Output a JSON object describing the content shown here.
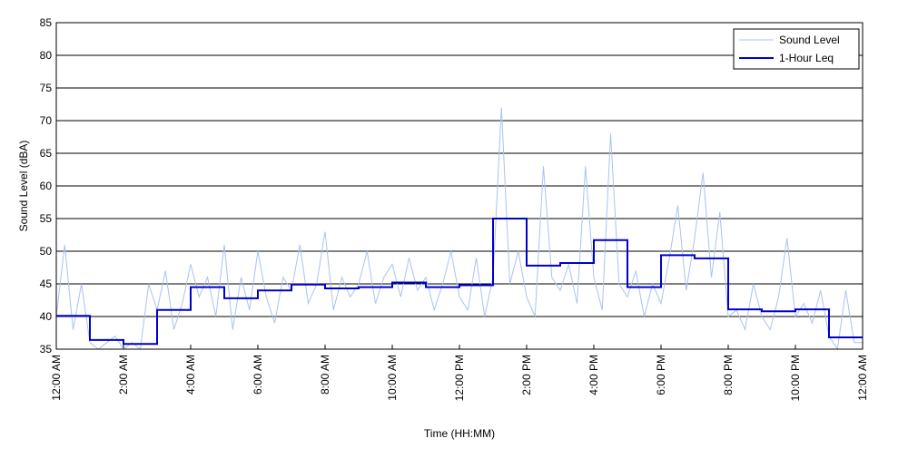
{
  "chart_data": {
    "type": "line",
    "xlabel": "Time (HH:MM)",
    "ylabel": "Sound Level (dBA)",
    "xlim": [
      0,
      24
    ],
    "ylim": [
      35,
      85
    ],
    "xticks": [
      {
        "value": 0,
        "label": "12:00 AM"
      },
      {
        "value": 2,
        "label": "2:00 AM"
      },
      {
        "value": 4,
        "label": "4:00 AM"
      },
      {
        "value": 6,
        "label": "6:00 AM"
      },
      {
        "value": 8,
        "label": "8:00 AM"
      },
      {
        "value": 10,
        "label": "10:00 AM"
      },
      {
        "value": 12,
        "label": "12:00 PM"
      },
      {
        "value": 14,
        "label": "2:00 PM"
      },
      {
        "value": 16,
        "label": "4:00 PM"
      },
      {
        "value": 18,
        "label": "6:00 PM"
      },
      {
        "value": 20,
        "label": "8:00 PM"
      },
      {
        "value": 22,
        "label": "10:00 PM"
      },
      {
        "value": 24,
        "label": "12:00 AM"
      }
    ],
    "yticks": [
      35,
      40,
      45,
      50,
      55,
      60,
      65,
      70,
      75,
      80,
      85
    ],
    "grid": true,
    "legend": "upper right",
    "series": [
      {
        "name": "Sound Level",
        "color": "#a9c3ef",
        "x": [
          0,
          0.25,
          0.5,
          0.75,
          1,
          1.25,
          1.5,
          1.75,
          2,
          2.25,
          2.5,
          2.75,
          3,
          3.25,
          3.5,
          3.75,
          4,
          4.25,
          4.5,
          4.75,
          5,
          5.25,
          5.5,
          5.75,
          6,
          6.25,
          6.5,
          6.75,
          7,
          7.25,
          7.5,
          7.75,
          8,
          8.25,
          8.5,
          8.75,
          9,
          9.25,
          9.5,
          9.75,
          10,
          10.25,
          10.5,
          10.75,
          11,
          11.25,
          11.5,
          11.75,
          12,
          12.25,
          12.5,
          12.75,
          13,
          13.25,
          13.5,
          13.75,
          14,
          14.25,
          14.5,
          14.75,
          15,
          15.25,
          15.5,
          15.75,
          16,
          16.25,
          16.5,
          16.75,
          17,
          17.25,
          17.5,
          17.75,
          18,
          18.25,
          18.5,
          18.75,
          19,
          19.25,
          19.5,
          19.75,
          20,
          20.25,
          20.5,
          20.75,
          21,
          21.25,
          21.5,
          21.75,
          22,
          22.25,
          22.5,
          22.75,
          23,
          23.25,
          23.5,
          23.75,
          24
        ],
        "values": [
          40,
          51,
          38,
          45,
          36,
          35,
          36,
          37,
          35,
          36,
          35,
          45,
          41,
          47,
          38,
          42,
          48,
          43,
          46,
          40,
          51,
          38,
          46,
          41,
          50,
          43,
          39,
          46,
          44,
          51,
          42,
          45,
          53,
          41,
          46,
          43,
          45,
          50,
          42,
          46,
          48,
          43,
          49,
          44,
          46,
          41,
          45,
          50,
          43,
          41,
          49,
          40,
          46,
          72,
          45,
          50,
          43,
          40,
          63,
          46,
          44,
          48,
          42,
          63,
          46,
          41,
          68,
          45,
          43,
          47,
          40,
          45,
          42,
          49,
          57,
          44,
          52,
          62,
          46,
          56,
          40,
          41,
          38,
          45,
          40,
          38,
          43,
          52,
          40,
          42,
          39,
          44,
          37,
          35,
          44,
          36,
          36
        ]
      },
      {
        "name": "1-Hour Leq",
        "color": "#0000cc",
        "drawstyle": "steps-post",
        "x": [
          0,
          1,
          2,
          3,
          4,
          5,
          6,
          7,
          8,
          9,
          10,
          11,
          12,
          13,
          14,
          15,
          16,
          17,
          18,
          19,
          20,
          21,
          22,
          23
        ],
        "values": [
          40.1,
          36.4,
          35.8,
          41.0,
          44.5,
          42.8,
          44.0,
          44.9,
          44.3,
          44.5,
          45.2,
          44.5,
          44.8,
          55.0,
          47.8,
          48.2,
          51.7,
          44.5,
          49.4,
          48.9,
          41.1,
          40.8,
          41.1,
          36.8
        ]
      }
    ]
  }
}
